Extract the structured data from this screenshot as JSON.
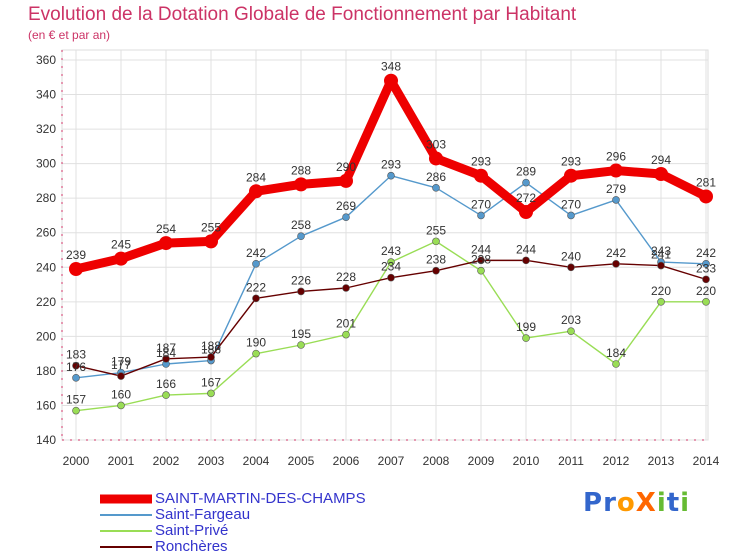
{
  "title": "Evolution de la Dotation Globale de Fonctionnement par Habitant",
  "subtitle": "(en € et par an)",
  "logo_text": "ProXiti",
  "colors": {
    "title": "#cc3366",
    "axis": "#cc3366",
    "grid": "#e0e0e0",
    "legend_text": "#3333cc"
  },
  "chart_data": {
    "type": "line",
    "title": "Evolution de la Dotation Globale de Fonctionnement par Habitant",
    "subtitle": "(en € et par an)",
    "xlabel": "",
    "ylabel": "",
    "x": [
      "2000",
      "2001",
      "2002",
      "2003",
      "2004",
      "2005",
      "2006",
      "2007",
      "2008",
      "2009",
      "2010",
      "2011",
      "2012",
      "2013",
      "2014"
    ],
    "ylim": [
      140,
      360
    ],
    "yticks": [
      140,
      160,
      180,
      200,
      220,
      240,
      260,
      280,
      300,
      320,
      340,
      360
    ],
    "grid": true,
    "legend_position": "bottom",
    "series": [
      {
        "name": "SAINT-MARTIN-DES-CHAMPS",
        "color": "#ee0000",
        "values": [
          239,
          245,
          254,
          255,
          284,
          288,
          290,
          348,
          303,
          293,
          272,
          293,
          296,
          294,
          281
        ]
      },
      {
        "name": "Saint-Fargeau",
        "color": "#5599cc",
        "values": [
          176,
          179,
          184,
          186,
          242,
          258,
          269,
          293,
          286,
          270,
          289,
          270,
          279,
          243,
          242
        ]
      },
      {
        "name": "Saint-Privé",
        "color": "#99dd55",
        "values": [
          157,
          160,
          166,
          167,
          190,
          195,
          201,
          243,
          255,
          238,
          199,
          203,
          184,
          220,
          220
        ]
      },
      {
        "name": "Ronchères",
        "color": "#660000",
        "values": [
          183,
          177,
          187,
          188,
          222,
          226,
          228,
          234,
          238,
          244,
          244,
          240,
          242,
          241,
          233
        ]
      }
    ]
  }
}
